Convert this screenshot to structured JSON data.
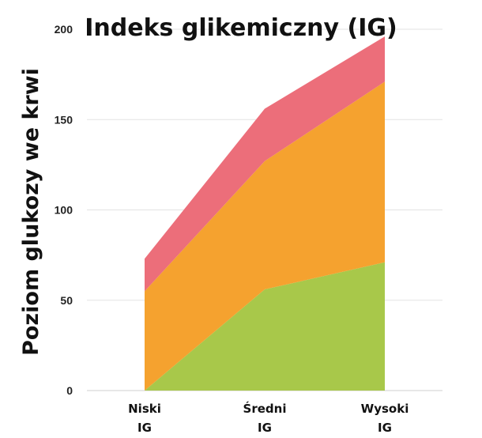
{
  "chart_data": {
    "type": "area",
    "stacked": true,
    "title": "Indeks glikemiczny (IG)",
    "xlabel": "",
    "ylabel": "Poziom glukozy we krwi",
    "categories": [
      [
        "Niski",
        "IG"
      ],
      [
        "Średni",
        "IG"
      ],
      [
        "Wysoki",
        "IG"
      ]
    ],
    "ylim": [
      0,
      200
    ],
    "yticks": [
      0,
      50,
      100,
      150,
      200
    ],
    "grid": true,
    "legend": "none",
    "series": [
      {
        "values": [
          0,
          56,
          71
        ],
        "color": "#a8c84a"
      },
      {
        "values": [
          55,
          71,
          100
        ],
        "color": "#f5a22f"
      },
      {
        "values": [
          18,
          29,
          25
        ],
        "color": "#ec6e7a"
      }
    ]
  }
}
